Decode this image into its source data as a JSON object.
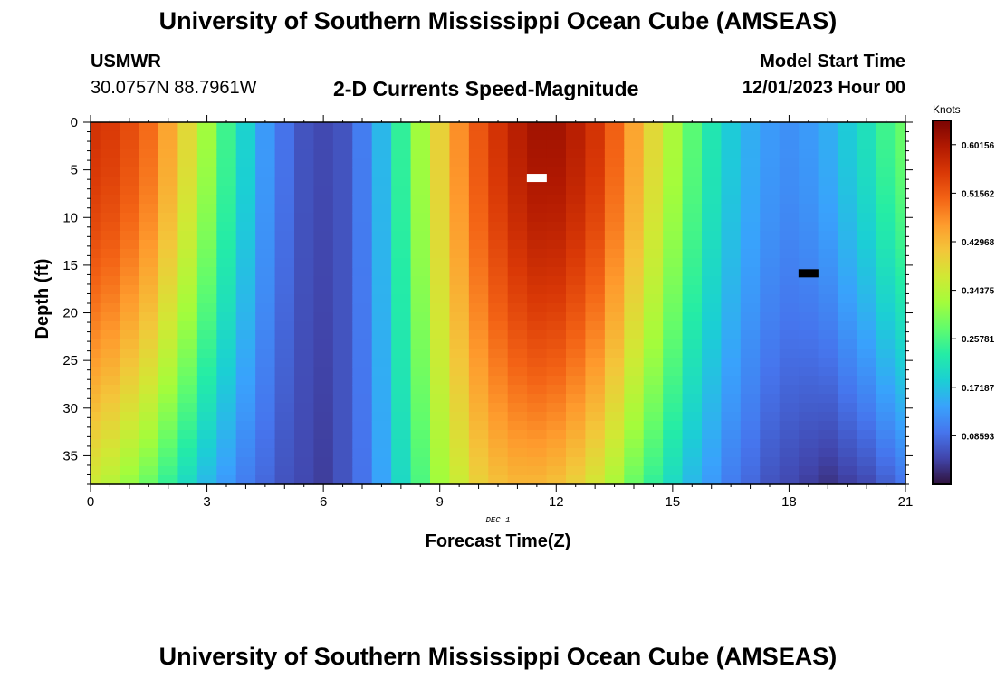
{
  "page": {
    "title": "University of Southern Mississippi Ocean Cube (AMSEAS)",
    "footer_title": "University of Southern Mississippi Ocean Cube (AMSEAS)",
    "station_id": "USMWR",
    "coordinates": "30.0757N  88.7961W",
    "model_start_label": "Model Start Time",
    "model_start_value": "12/01/2023 Hour 00"
  },
  "chart_data": {
    "type": "heatmap",
    "title": "2-D Currents Speed-Magnitude",
    "xlabel": "Forecast Time(Z)",
    "ylabel": "Depth (ft)",
    "date_label": "DEC 1",
    "xlim": [
      0,
      21
    ],
    "ylim": [
      0,
      38
    ],
    "x_ticks": [
      0,
      3,
      6,
      9,
      12,
      15,
      18,
      21
    ],
    "y_ticks": [
      0,
      5,
      10,
      15,
      20,
      25,
      30,
      35
    ],
    "colorbar": {
      "label": "Knots",
      "min": 0.0,
      "max": 0.6445,
      "ticks": [
        "0.08593",
        "0.17187",
        "0.25781",
        "0.34375",
        "0.42968",
        "0.51562",
        "0.60156"
      ],
      "tick_values": [
        0.08593,
        0.17187,
        0.25781,
        0.34375,
        0.42968,
        0.51562,
        0.60156
      ],
      "colors": [
        "#30123b",
        "#4145ab",
        "#4675ed",
        "#39a2fc",
        "#1bcfd4",
        "#24eca6",
        "#61fc6c",
        "#a4fc3b",
        "#d1e834",
        "#f3c63a",
        "#fe9b2d",
        "#f36315",
        "#d93806",
        "#b11901",
        "#7a0403"
      ]
    },
    "time_columns": [
      0,
      0.5,
      1,
      1.5,
      2,
      2.5,
      3,
      3.5,
      4,
      4.5,
      5,
      5.5,
      6,
      6.5,
      7,
      7.5,
      8,
      8.5,
      9,
      9.5,
      10,
      10.5,
      11,
      11.5,
      12,
      12.5,
      13,
      13.5,
      14,
      14.5,
      15,
      15.5,
      16,
      16.5,
      17,
      17.5,
      18,
      18.5,
      19,
      19.5,
      20,
      20.5,
      21
    ],
    "surface_speed": [
      0.56,
      0.55,
      0.53,
      0.5,
      0.45,
      0.39,
      0.32,
      0.25,
      0.19,
      0.13,
      0.09,
      0.06,
      0.05,
      0.06,
      0.1,
      0.16,
      0.24,
      0.32,
      0.4,
      0.47,
      0.52,
      0.56,
      0.59,
      0.61,
      0.61,
      0.59,
      0.56,
      0.51,
      0.45,
      0.39,
      0.33,
      0.27,
      0.22,
      0.18,
      0.15,
      0.13,
      0.12,
      0.13,
      0.15,
      0.18,
      0.21,
      0.25,
      0.28
    ],
    "bottom_speed": [
      0.36,
      0.34,
      0.31,
      0.28,
      0.24,
      0.2,
      0.16,
      0.13,
      0.1,
      0.08,
      0.06,
      0.05,
      0.04,
      0.06,
      0.09,
      0.14,
      0.2,
      0.26,
      0.32,
      0.36,
      0.4,
      0.42,
      0.43,
      0.43,
      0.42,
      0.4,
      0.37,
      0.33,
      0.28,
      0.24,
      0.2,
      0.16,
      0.13,
      0.1,
      0.08,
      0.06,
      0.05,
      0.04,
      0.03,
      0.04,
      0.05,
      0.07,
      0.09
    ],
    "markers": [
      {
        "color": "#ffffff",
        "time": 11.5,
        "depth": 5.8
      },
      {
        "color": "#000000",
        "time": 18.5,
        "depth": 15.8
      }
    ]
  }
}
